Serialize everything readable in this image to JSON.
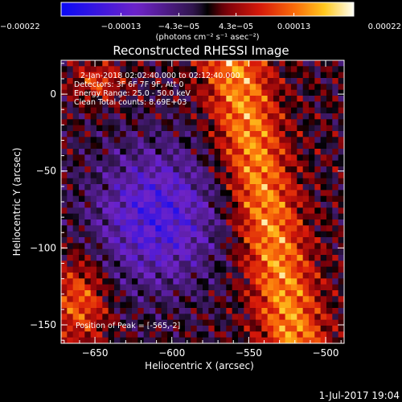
{
  "chart_data": {
    "type": "heatmap",
    "title": "Reconstructed RHESSI Image",
    "xlabel": "Heliocentric X (arcsec)",
    "ylabel": "Heliocentric Y (arcsec)",
    "xlim": [
      -672,
      -488
    ],
    "ylim": [
      -162,
      22
    ],
    "x_ticks": [
      -650,
      -600,
      -550,
      -500
    ],
    "y_ticks": [
      0,
      -50,
      -100,
      -150
    ],
    "x_tick_labels": [
      "−650",
      "−600",
      "−550",
      "−500"
    ],
    "y_tick_labels": [
      "0",
      "−50",
      "−100",
      "−150"
    ],
    "colorbar": {
      "range": [
        -0.00022,
        0.00022
      ],
      "ticks": [
        -0.00022,
        -0.00013,
        -4.3e-05,
        4.3e-05,
        0.00013,
        0.00022
      ],
      "tick_labels": [
        "−0.00022",
        "−0.00013",
        "−4.3e−05",
        "4.3e−05",
        "0.00013",
        "0.00022"
      ],
      "unit_label": "(photons cm⁻² s⁻¹ asec⁻²)"
    },
    "annotations": [
      "2-Jan-2018 02:02:40.000 to 02:12:40.000",
      "Detectors: 3F 6F 7F 9F, Att 0",
      "Energy Range: 25.0 - 50.0 keV",
      "Clean Total counts: 8.69E+03"
    ],
    "peak_text": "Position of Peak = [-565,-2]",
    "peak_position": [
      -565,
      -2
    ],
    "grid": false
  },
  "footer": {
    "timestamp": "1-Jul-2017 19:04"
  }
}
